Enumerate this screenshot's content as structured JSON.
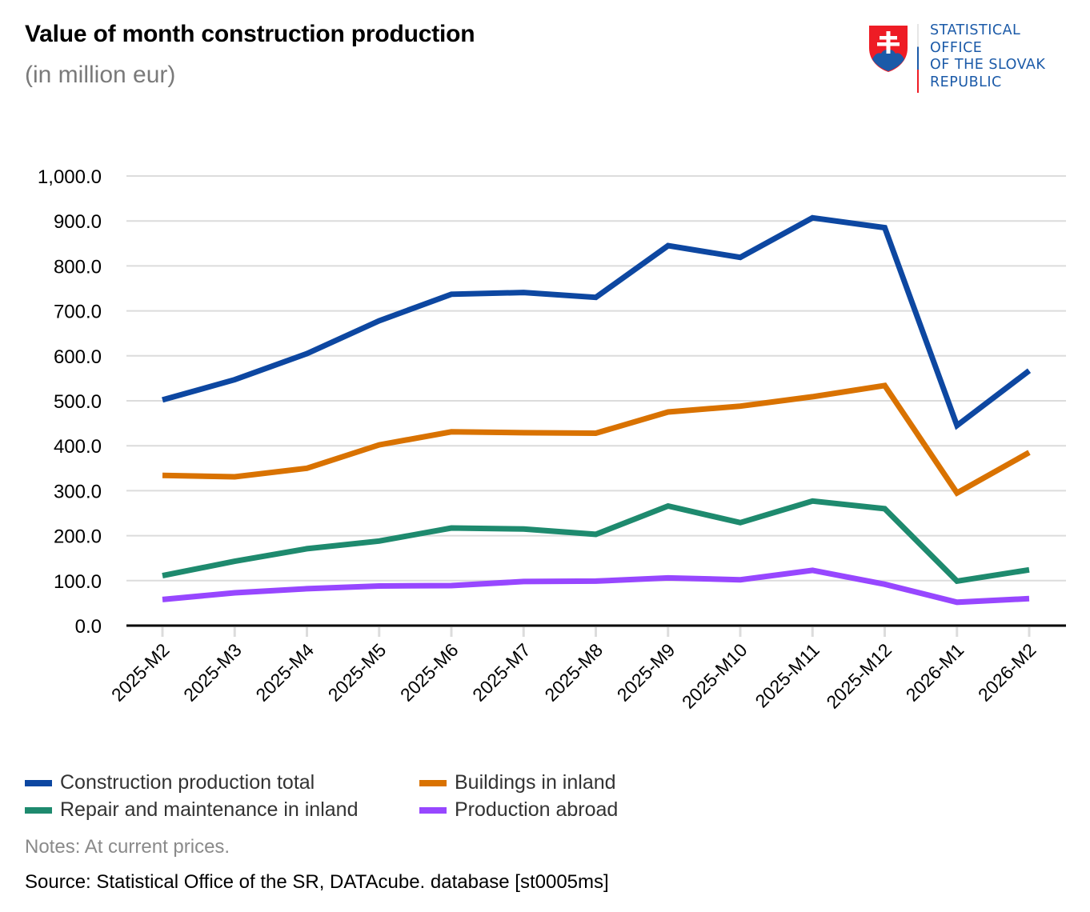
{
  "header": {
    "title": "Value of month construction production",
    "subtitle": "(in million eur)"
  },
  "logo": {
    "icon": "slovak-coat-of-arms-icon",
    "lines": [
      "STATISTICAL",
      "OFFICE",
      "OF THE SLOVAK",
      "REPUBLIC"
    ],
    "text_color": "#1b5aa8"
  },
  "footer": {
    "notes": "Notes: At current prices.",
    "source": "Source: Statistical Office of the SR, DATAcube. database [st0005ms]"
  },
  "chart_data": {
    "type": "line",
    "title": "Value of month construction production",
    "subtitle": "(in million eur)",
    "xlabel": "",
    "ylabel": "",
    "ylim": [
      0,
      1000
    ],
    "yticks": [
      0,
      100,
      200,
      300,
      400,
      500,
      600,
      700,
      800,
      900,
      1000
    ],
    "ytick_labels": [
      "0.0",
      "100.0",
      "200.0",
      "300.0",
      "400.0",
      "500.0",
      "600.0",
      "700.0",
      "800.0",
      "900.0",
      "1,000.0"
    ],
    "grid": true,
    "legend_position": "bottom",
    "categories": [
      "2025-M2",
      "2025-M3",
      "2025-M4",
      "2025-M5",
      "2025-M6",
      "2025-M7",
      "2025-M8",
      "2025-M9",
      "2025-M10",
      "2025-M11",
      "2025-M12",
      "2026-M1",
      "2026-M2"
    ],
    "series": [
      {
        "name": "Construction production total",
        "color": "#0d47a1",
        "values": [
          502,
          547,
          605,
          678,
          737,
          741,
          730,
          845,
          819,
          907,
          885,
          445,
          567
        ]
      },
      {
        "name": "Buildings in inland",
        "color": "#d97200",
        "values": [
          334,
          331,
          350,
          402,
          431,
          429,
          428,
          475,
          488,
          509,
          534,
          295,
          385
        ]
      },
      {
        "name": "Repair and maintenance in inland",
        "color": "#1e8a6e",
        "values": [
          111,
          143,
          171,
          188,
          217,
          215,
          203,
          266,
          229,
          277,
          260,
          99,
          124
        ]
      },
      {
        "name": "Production abroad",
        "color": "#9747ff",
        "values": [
          58,
          73,
          82,
          88,
          89,
          98,
          99,
          106,
          102,
          123,
          92,
          52,
          60
        ]
      }
    ]
  }
}
